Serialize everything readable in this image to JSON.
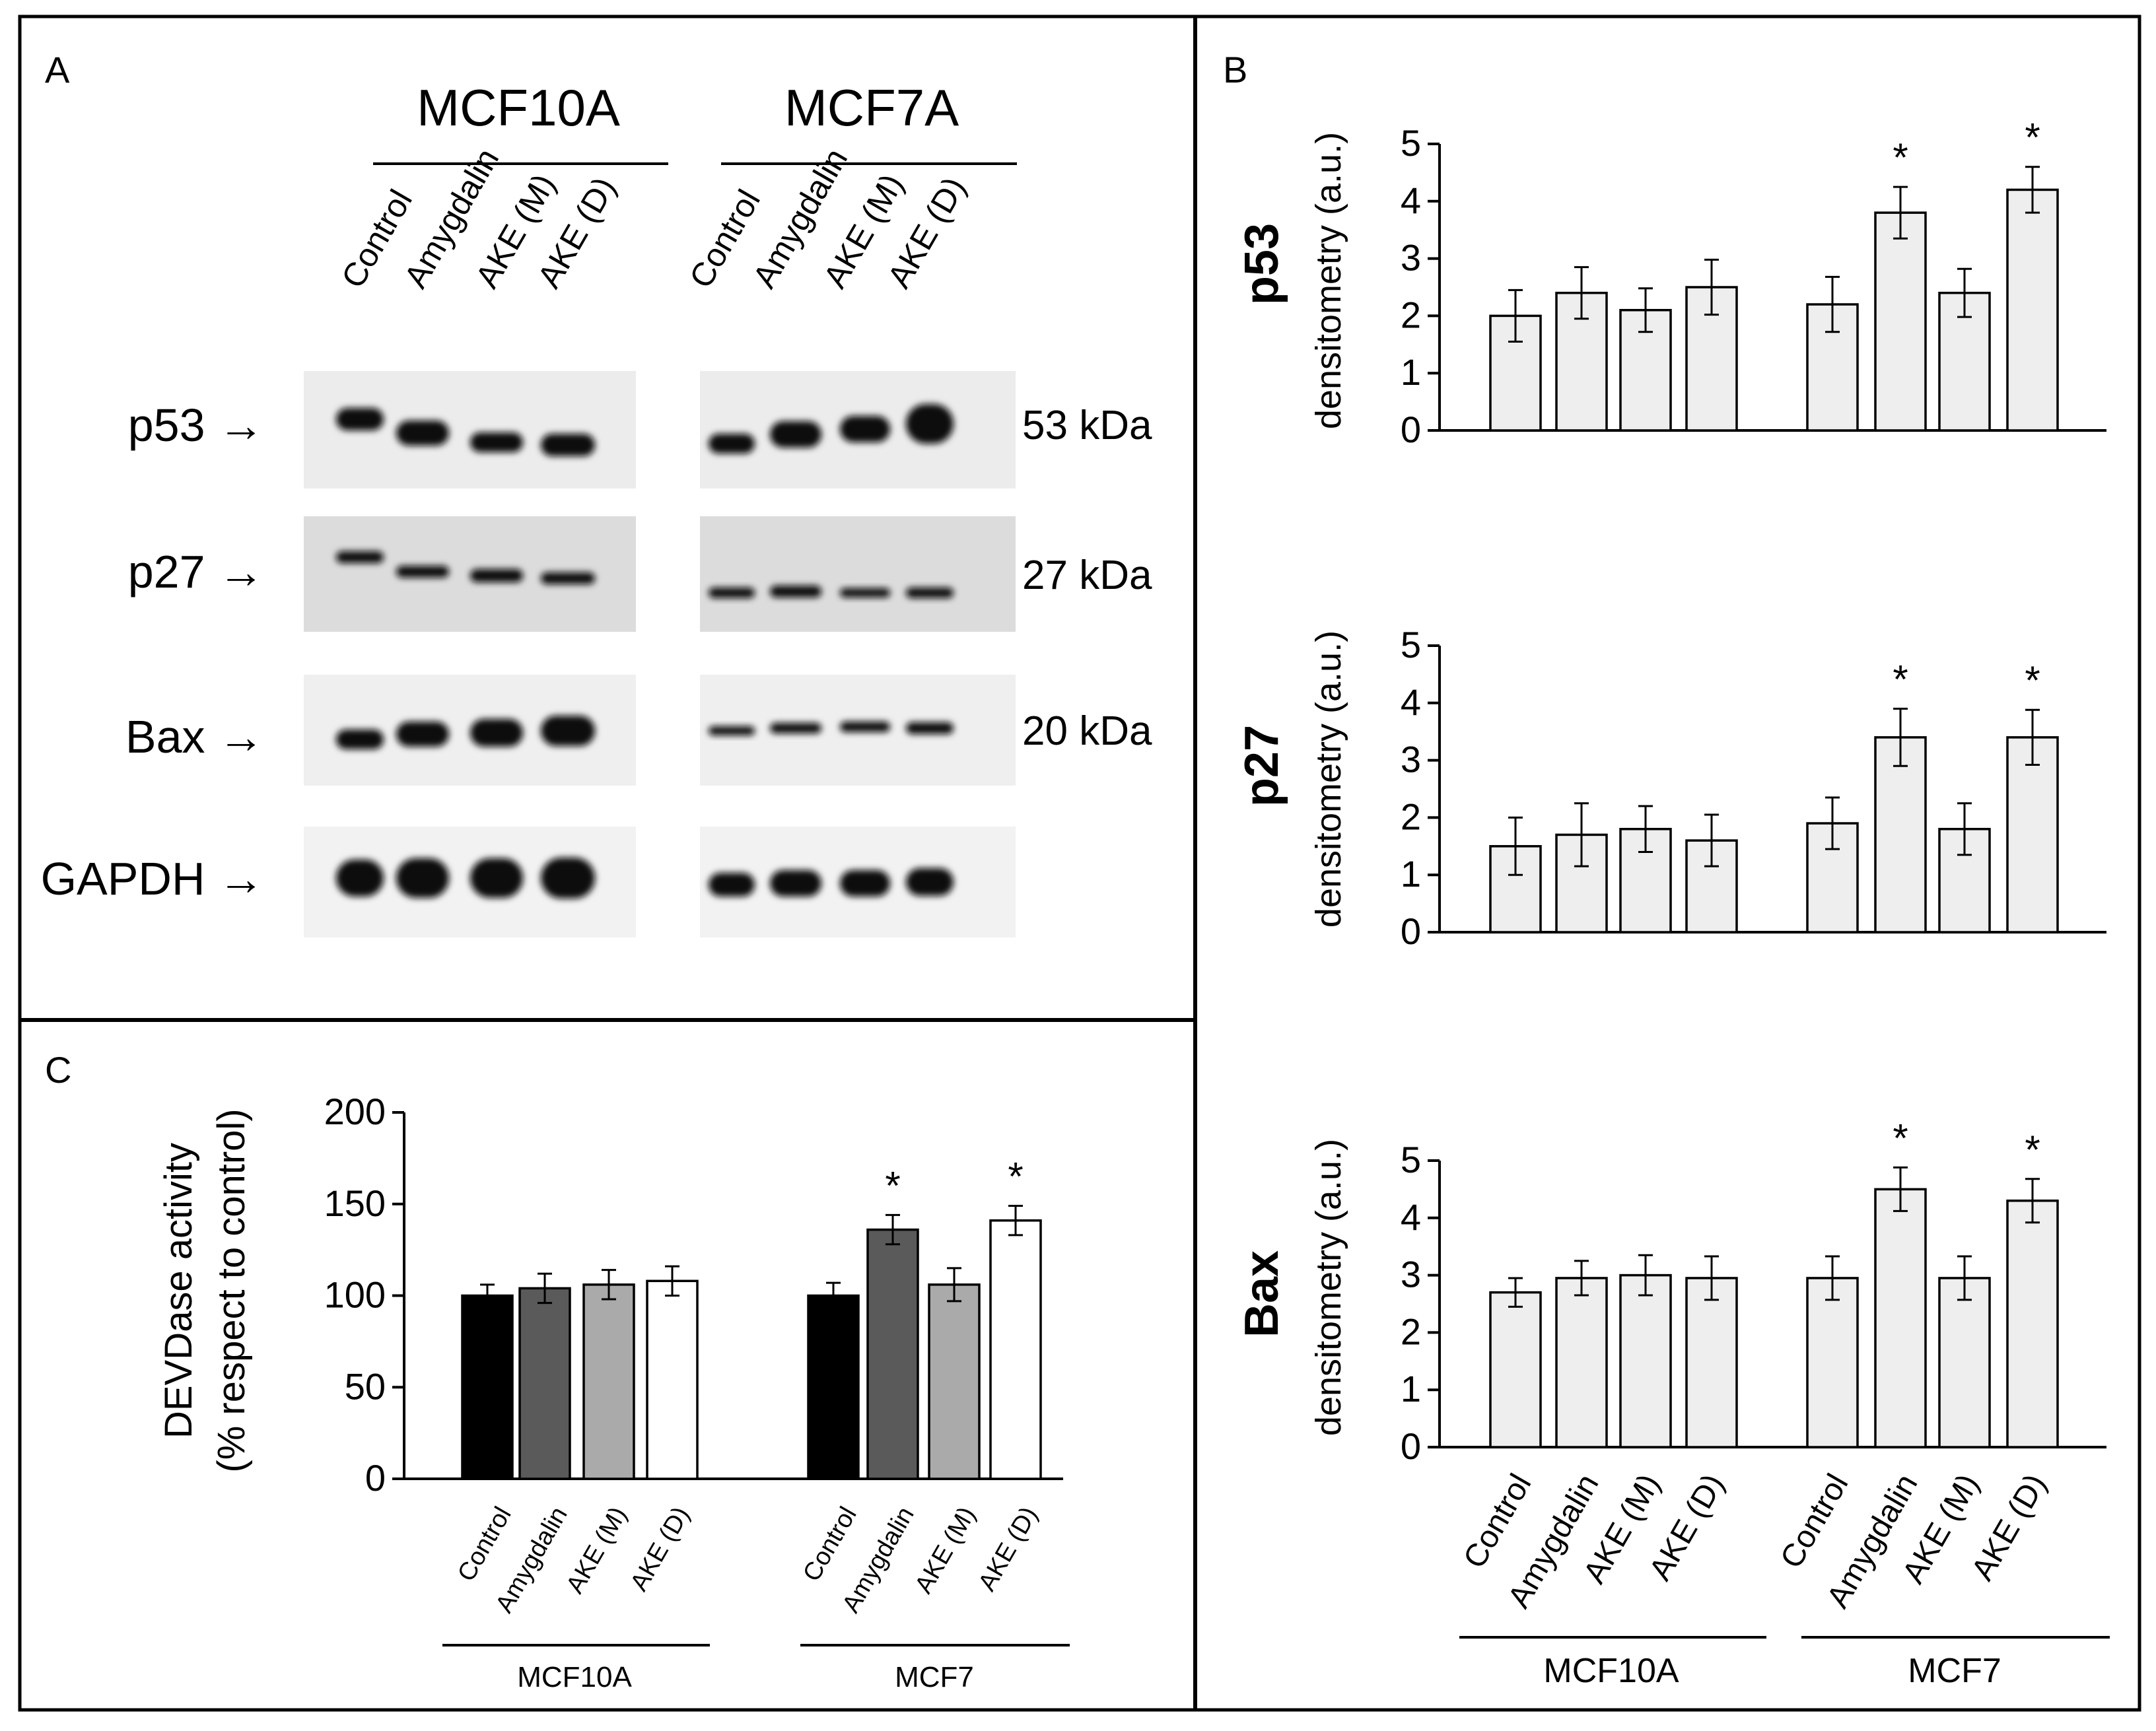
{
  "panels": {
    "a": "A",
    "b": "B",
    "c": "C"
  },
  "panel_a": {
    "groups": [
      "MCF10A",
      "MCF7A"
    ],
    "lanes": [
      "Control",
      "Amygdalin",
      "AKE (M)",
      "AKE (D)"
    ],
    "blots": [
      {
        "label": "p53 →",
        "kda": "53 kDa"
      },
      {
        "label": "p27 →",
        "kda": "27 kDa"
      },
      {
        "label": "Bax →",
        "kda": "20 kDa"
      },
      {
        "label": "GAPDH →",
        "kda": ""
      }
    ]
  },
  "colors": {
    "bar_light": "#eeeeee",
    "dark_bar": "#5a5a5a",
    "mid_bar": "#aaaaaa",
    "black": "#000000",
    "white": "#ffffff"
  },
  "chart_data": [
    {
      "id": "b-p53",
      "type": "bar",
      "protein": "p53",
      "ylabel": "densitometry (a.u.)",
      "ylim": [
        0,
        5
      ],
      "yticks": [
        "0",
        "1",
        "2",
        "3",
        "4",
        "5"
      ],
      "groups": [
        {
          "name": "MCF10A",
          "categories": [
            "Control",
            "Amygdalin",
            "AKE (M)",
            "AKE (D)"
          ],
          "values": [
            2.0,
            2.4,
            2.1,
            2.5
          ],
          "errors": [
            0.45,
            0.45,
            0.38,
            0.48
          ],
          "stars": [
            "",
            "",
            "",
            ""
          ]
        },
        {
          "name": "MCF7",
          "categories": [
            "Control",
            "Amygdalin",
            "AKE (M)",
            "AKE (D)"
          ],
          "values": [
            2.2,
            3.8,
            2.4,
            4.2
          ],
          "errors": [
            0.48,
            0.45,
            0.42,
            0.4
          ],
          "stars": [
            "",
            "*",
            "",
            "*"
          ]
        }
      ]
    },
    {
      "id": "b-p27",
      "type": "bar",
      "protein": "p27",
      "ylabel": "densitometry (a.u.)",
      "ylim": [
        0,
        5
      ],
      "yticks": [
        "0",
        "1",
        "2",
        "3",
        "4",
        "5"
      ],
      "groups": [
        {
          "name": "MCF10A",
          "categories": [
            "Control",
            "Amygdalin",
            "AKE (M)",
            "AKE (D)"
          ],
          "values": [
            1.5,
            1.7,
            1.8,
            1.6
          ],
          "errors": [
            0.5,
            0.55,
            0.4,
            0.45
          ],
          "stars": [
            "",
            "",
            "",
            ""
          ]
        },
        {
          "name": "MCF7",
          "categories": [
            "Control",
            "Amygdalin",
            "AKE (M)",
            "AKE (D)"
          ],
          "values": [
            1.9,
            3.4,
            1.8,
            3.4
          ],
          "errors": [
            0.45,
            0.5,
            0.45,
            0.48
          ],
          "stars": [
            "",
            "*",
            "",
            "*"
          ]
        }
      ]
    },
    {
      "id": "b-bax",
      "type": "bar",
      "protein": "Bax",
      "ylabel": "densitometry (a.u.)",
      "ylim": [
        0,
        5
      ],
      "yticks": [
        "0",
        "1",
        "2",
        "3",
        "4",
        "5"
      ],
      "groups": [
        {
          "name": "MCF10A",
          "categories": [
            "Control",
            "Amygdalin",
            "AKE (M)",
            "AKE (D)"
          ],
          "values": [
            2.7,
            2.95,
            3.0,
            2.95
          ],
          "errors": [
            0.25,
            0.3,
            0.35,
            0.38
          ],
          "stars": [
            "",
            "",
            "",
            ""
          ]
        },
        {
          "name": "MCF7",
          "categories": [
            "Control",
            "Amygdalin",
            "AKE (M)",
            "AKE (D)"
          ],
          "values": [
            2.95,
            4.5,
            2.95,
            4.3
          ],
          "errors": [
            0.38,
            0.38,
            0.38,
            0.38
          ],
          "stars": [
            "",
            "*",
            "",
            "*"
          ]
        }
      ]
    },
    {
      "id": "c-devdase",
      "type": "bar",
      "ylabel": "DEVDase activity",
      "ylabel2": "(% respect to control)",
      "ylim": [
        0,
        200
      ],
      "yticks": [
        "0",
        "50",
        "100",
        "150",
        "200"
      ],
      "groups": [
        {
          "name": "MCF10A",
          "categories": [
            "Control",
            "Amygdalin",
            "AKE (M)",
            "AKE (D)"
          ],
          "values": [
            100,
            104,
            106,
            108
          ],
          "errors": [
            6,
            8,
            8,
            8
          ],
          "stars": [
            "",
            "",
            "",
            ""
          ]
        },
        {
          "name": "MCF7",
          "categories": [
            "Control",
            "Amygdalin",
            "AKE (M)",
            "AKE (D)"
          ],
          "values": [
            100,
            136,
            106,
            141
          ],
          "errors": [
            7,
            8,
            9,
            8
          ],
          "stars": [
            "",
            "*",
            "",
            "*"
          ]
        }
      ]
    }
  ]
}
